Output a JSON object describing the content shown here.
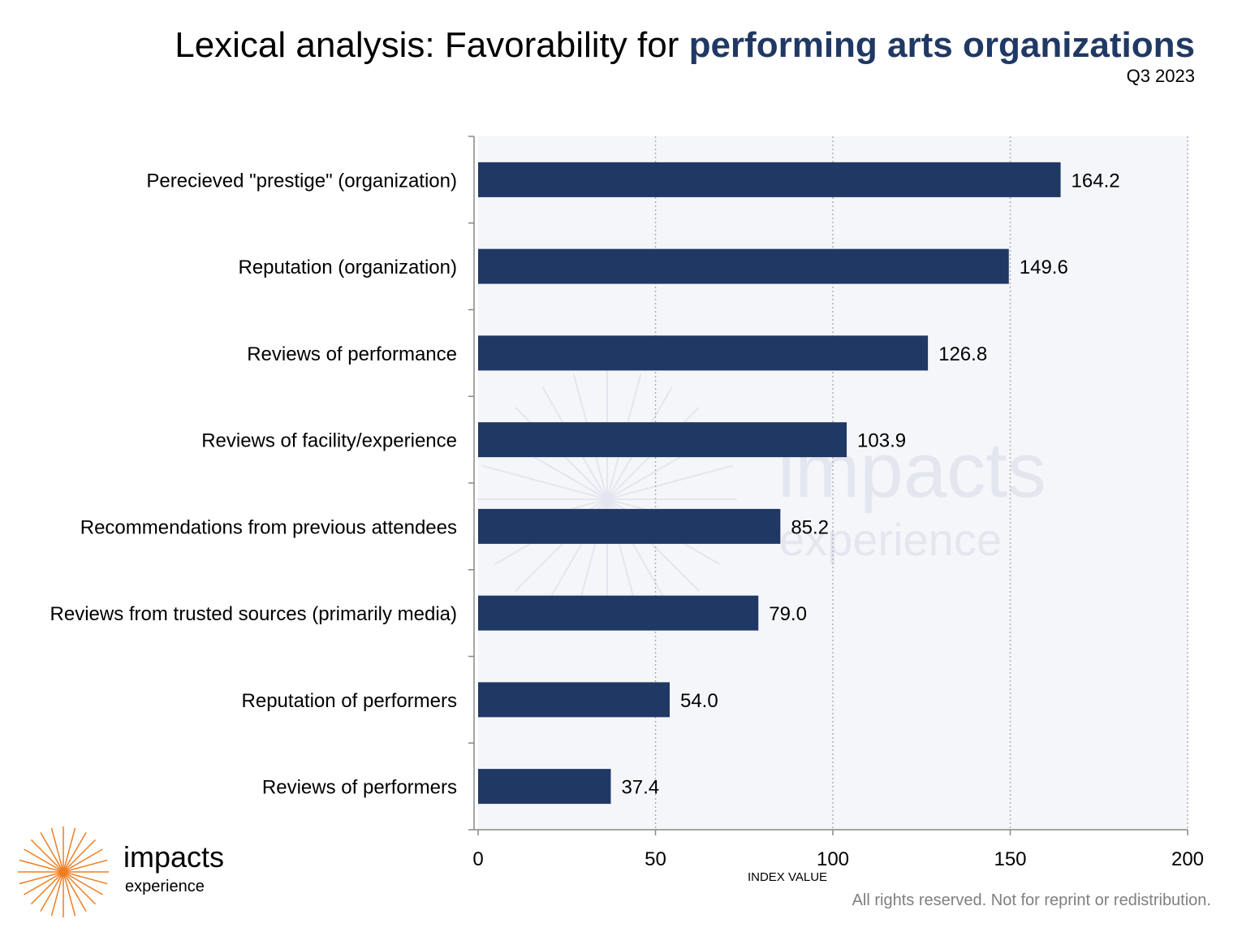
{
  "header": {
    "title_plain": "Lexical analysis: Favorability for ",
    "title_accent": "performing arts organizations",
    "subtitle": "Q3 2023"
  },
  "colors": {
    "bar": "#203864",
    "accent_title": "#203864",
    "plot_bg": "#f5f6fa",
    "grid": "#b0b0b0",
    "logo_orange": "#f07d22",
    "watermark": "#e3e6ee"
  },
  "chart_data": {
    "type": "bar",
    "orientation": "horizontal",
    "categories": [
      "Perecieved \"prestige\" (organization)",
      "Reputation (organization)",
      "Reviews of performance",
      "Reviews of facility/experience",
      "Recommendations from previous attendees",
      "Reviews from trusted sources (primarily media)",
      "Reputation of performers",
      "Reviews of performers"
    ],
    "values": [
      164.2,
      149.6,
      126.8,
      103.9,
      85.2,
      79.0,
      54.0,
      37.4
    ],
    "value_labels": [
      "164.2",
      "149.6",
      "126.8",
      "103.9",
      "85.2",
      "79.0",
      "54.0",
      "37.4"
    ],
    "xlim": [
      0,
      200
    ],
    "xticks": [
      0,
      50,
      100,
      150,
      200
    ],
    "xtick_labels": [
      "0",
      "50",
      "100",
      "150",
      "200"
    ],
    "xlabel": "INDEX VALUE",
    "grid": "vertical dotted"
  },
  "watermark": {
    "word": "impacts",
    "sub": "experience"
  },
  "logo": {
    "word": "impacts",
    "sub": "experience",
    "icon": "starburst-icon"
  },
  "footer": {
    "note": "All rights reserved. Not for reprint or redistribution."
  }
}
